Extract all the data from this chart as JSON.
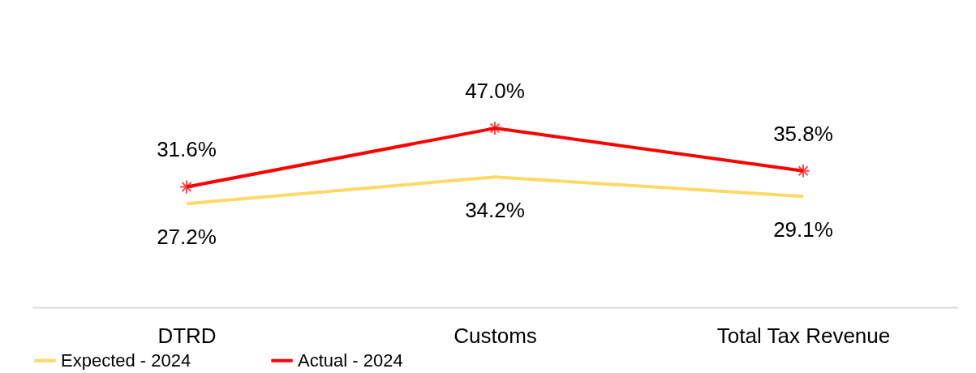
{
  "chart_data": {
    "type": "line",
    "categories": [
      "DTRD",
      "Customs",
      "Total Tax Revenue"
    ],
    "legend": "bottom",
    "series": [
      {
        "name": "Expected - 2024",
        "color": "#ffd966",
        "values": [
          27.2,
          34.2,
          29.1
        ],
        "value_labels": [
          "27.2%",
          "34.2%",
          "29.1%"
        ],
        "marker": "none"
      },
      {
        "name": "Actual - 2024",
        "color": "#ff0000",
        "values": [
          31.6,
          47.0,
          35.8
        ],
        "value_labels": [
          "31.6%",
          "47.0%",
          "35.8%"
        ],
        "marker": "cross"
      }
    ]
  }
}
